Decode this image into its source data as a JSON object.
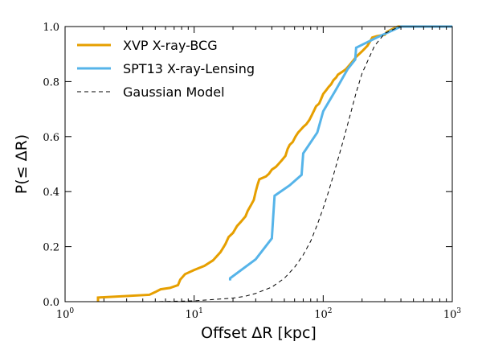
{
  "chart_data": {
    "type": "line",
    "xlabel": "Offset ΔR [kpc]",
    "ylabel": "P(≤ ΔR)",
    "xscale": "log",
    "xlim": [
      1,
      1000
    ],
    "ylim": [
      0,
      1.0
    ],
    "x_ticks": [
      1,
      10,
      100,
      1000
    ],
    "x_tick_labels": [
      {
        "base": "10",
        "exp": "0"
      },
      {
        "base": "10",
        "exp": "1"
      },
      {
        "base": "10",
        "exp": "2"
      },
      {
        "base": "10",
        "exp": "3"
      }
    ],
    "y_ticks": [
      0.0,
      0.2,
      0.4,
      0.6,
      0.8,
      1.0
    ],
    "y_tick_labels": [
      "0.0",
      "0.2",
      "0.4",
      "0.6",
      "0.8",
      "1.0"
    ],
    "grid": false,
    "legend_position": "top-left",
    "series": [
      {
        "name": "XVP X-ray-BCG",
        "color": "#E69F00",
        "style": "solid",
        "points": [
          [
            1.8,
            0.0
          ],
          [
            1.8,
            0.015
          ],
          [
            4.5,
            0.025
          ],
          [
            5.0,
            0.035
          ],
          [
            5.5,
            0.045
          ],
          [
            6.5,
            0.05
          ],
          [
            7.5,
            0.06
          ],
          [
            7.8,
            0.08
          ],
          [
            8.5,
            0.1
          ],
          [
            10,
            0.115
          ],
          [
            12,
            0.13
          ],
          [
            14,
            0.15
          ],
          [
            16,
            0.18
          ],
          [
            17,
            0.2
          ],
          [
            17.5,
            0.21
          ],
          [
            18.5,
            0.235
          ],
          [
            20,
            0.25
          ],
          [
            21.5,
            0.275
          ],
          [
            23,
            0.29
          ],
          [
            25,
            0.31
          ],
          [
            26,
            0.33
          ],
          [
            27.5,
            0.35
          ],
          [
            29,
            0.37
          ],
          [
            30,
            0.4
          ],
          [
            31,
            0.425
          ],
          [
            32,
            0.445
          ],
          [
            36,
            0.455
          ],
          [
            38,
            0.465
          ],
          [
            40,
            0.48
          ],
          [
            43,
            0.49
          ],
          [
            45,
            0.5
          ],
          [
            48,
            0.515
          ],
          [
            51,
            0.53
          ],
          [
            53,
            0.555
          ],
          [
            55,
            0.57
          ],
          [
            58,
            0.58
          ],
          [
            61,
            0.6
          ],
          [
            64,
            0.615
          ],
          [
            67,
            0.625
          ],
          [
            70,
            0.635
          ],
          [
            74,
            0.645
          ],
          [
            78,
            0.66
          ],
          [
            81,
            0.675
          ],
          [
            85,
            0.695
          ],
          [
            88,
            0.71
          ],
          [
            93,
            0.72
          ],
          [
            96,
            0.735
          ],
          [
            100,
            0.755
          ],
          [
            106,
            0.77
          ],
          [
            110,
            0.78
          ],
          [
            115,
            0.79
          ],
          [
            120,
            0.805
          ],
          [
            126,
            0.815
          ],
          [
            130,
            0.825
          ],
          [
            140,
            0.835
          ],
          [
            150,
            0.845
          ],
          [
            160,
            0.86
          ],
          [
            170,
            0.875
          ],
          [
            180,
            0.89
          ],
          [
            200,
            0.91
          ],
          [
            220,
            0.93
          ],
          [
            230,
            0.945
          ],
          [
            240,
            0.96
          ],
          [
            260,
            0.965
          ],
          [
            300,
            0.97
          ],
          [
            310,
            0.98
          ],
          [
            340,
            0.99
          ],
          [
            380,
            1.0
          ],
          [
            1000,
            1.0
          ]
        ]
      },
      {
        "name": "SPT13 X-ray-Lensing",
        "color": "#56B4E9",
        "style": "solid",
        "points": [
          [
            19,
            0.077
          ],
          [
            19,
            0.085
          ],
          [
            30,
            0.154
          ],
          [
            40,
            0.23
          ],
          [
            41,
            0.31
          ],
          [
            42,
            0.385
          ],
          [
            55,
            0.423
          ],
          [
            68,
            0.461
          ],
          [
            70,
            0.539
          ],
          [
            90,
            0.615
          ],
          [
            100,
            0.692
          ],
          [
            125,
            0.769
          ],
          [
            155,
            0.846
          ],
          [
            177,
            0.88
          ],
          [
            180,
            0.923
          ],
          [
            260,
            0.96
          ],
          [
            400,
            1.0
          ],
          [
            1000,
            1.0
          ]
        ]
      },
      {
        "name": "Gaussian Model",
        "color": "#000000",
        "style": "dashed",
        "points": [
          [
            1.3,
            0.0
          ],
          [
            5,
            0.0
          ],
          [
            10,
            0.003
          ],
          [
            20,
            0.013
          ],
          [
            25,
            0.02
          ],
          [
            30,
            0.03
          ],
          [
            40,
            0.053
          ],
          [
            50,
            0.085
          ],
          [
            60,
            0.125
          ],
          [
            70,
            0.17
          ],
          [
            80,
            0.22
          ],
          [
            90,
            0.28
          ],
          [
            100,
            0.34
          ],
          [
            110,
            0.4
          ],
          [
            120,
            0.46
          ],
          [
            140,
            0.57
          ],
          [
            160,
            0.67
          ],
          [
            180,
            0.76
          ],
          [
            200,
            0.83
          ],
          [
            250,
            0.93
          ],
          [
            300,
            0.975
          ],
          [
            350,
            0.99
          ],
          [
            400,
            1.0
          ],
          [
            1000,
            1.0
          ]
        ]
      }
    ]
  }
}
